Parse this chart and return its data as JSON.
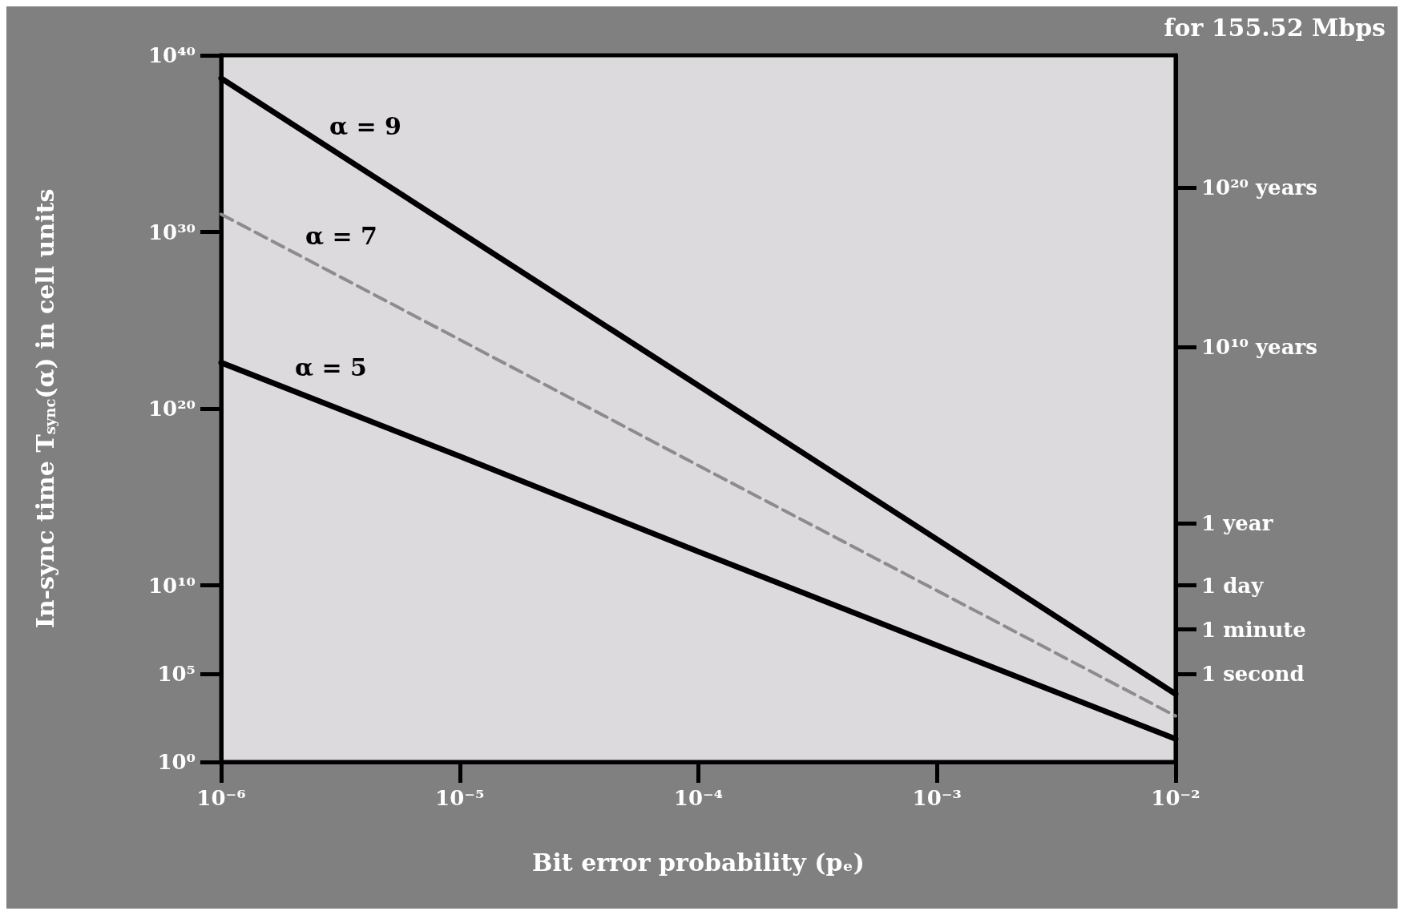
{
  "chart_data": {
    "type": "line",
    "title": "for 155.52 Mbps",
    "xlabel": "Bit error probability (pₑ)",
    "ylabel": "In-sync time T$_{sync}$(α) in cell units",
    "x": [
      1e-06,
      1e-05,
      0.0001,
      0.001,
      0.01
    ],
    "series": [
      {
        "name": "α = 9",
        "color": "#000000",
        "line_style": "solid",
        "values": [
          5e+38,
          1e+30,
          2e+21,
          4000000000000.0,
          7000.0
        ]
      },
      {
        "name": "α = 7",
        "color": "#8c8c8c",
        "line_style": "dashed",
        "values": [
          1e+31,
          8e+23,
          6e+16,
          5000000000.0,
          400.0
        ]
      },
      {
        "name": "α = 5",
        "color": "#000000",
        "line_style": "solid",
        "values": [
          4e+22,
          2e+17,
          800000000000.0,
          4000000.0,
          20.0
        ]
      }
    ],
    "log": "xy",
    "xlim": [
      1e-06,
      0.01
    ],
    "xticks": [
      {
        "value": 1e-06,
        "label": "10⁻⁶"
      },
      {
        "value": 1e-05,
        "label": "10⁻⁵"
      },
      {
        "value": 0.0001,
        "label": "10⁻⁴"
      },
      {
        "value": 0.001,
        "label": "10⁻³"
      },
      {
        "value": 0.01,
        "label": "10⁻²"
      }
    ],
    "ylim": [
      1,
      1e+40
    ],
    "yticks": [
      {
        "value": 1,
        "label": "10⁰"
      },
      {
        "value": 100000.0,
        "label": "10⁵"
      },
      {
        "value": 10000000000.0,
        "label": "10¹⁰"
      },
      {
        "value": 1e+20,
        "label": "10²⁰"
      },
      {
        "value": 1e+30,
        "label": "10³⁰"
      },
      {
        "value": 1e+40,
        "label": "10⁴⁰"
      }
    ],
    "y2_categories": [
      null,
      null,
      null,
      null,
      null,
      null,
      null,
      null,
      null,
      null,
      null,
      null,
      null,
      null,
      null,
      "10²⁰ years",
      null,
      null,
      null,
      null,
      null,
      null,
      null,
      null,
      null,
      null,
      null,
      null,
      null,
      null,
      null,
      null,
      null,
      "10¹⁰ years",
      null,
      null,
      null,
      null,
      null,
      null,
      null,
      null,
      null,
      null,
      null,
      null,
      null,
      null,
      null,
      null,
      null,
      null,
      null,
      "1 year",
      null,
      null,
      null,
      null,
      null,
      null,
      "1 day",
      null,
      null,
      null,
      null,
      "1 minute",
      null,
      null,
      null,
      null,
      "1 second",
      null,
      null,
      null,
      null,
      null,
      null,
      null,
      null,
      null,
      null
    ],
    "grid": false,
    "legend": false,
    "marker": "none"
  }
}
